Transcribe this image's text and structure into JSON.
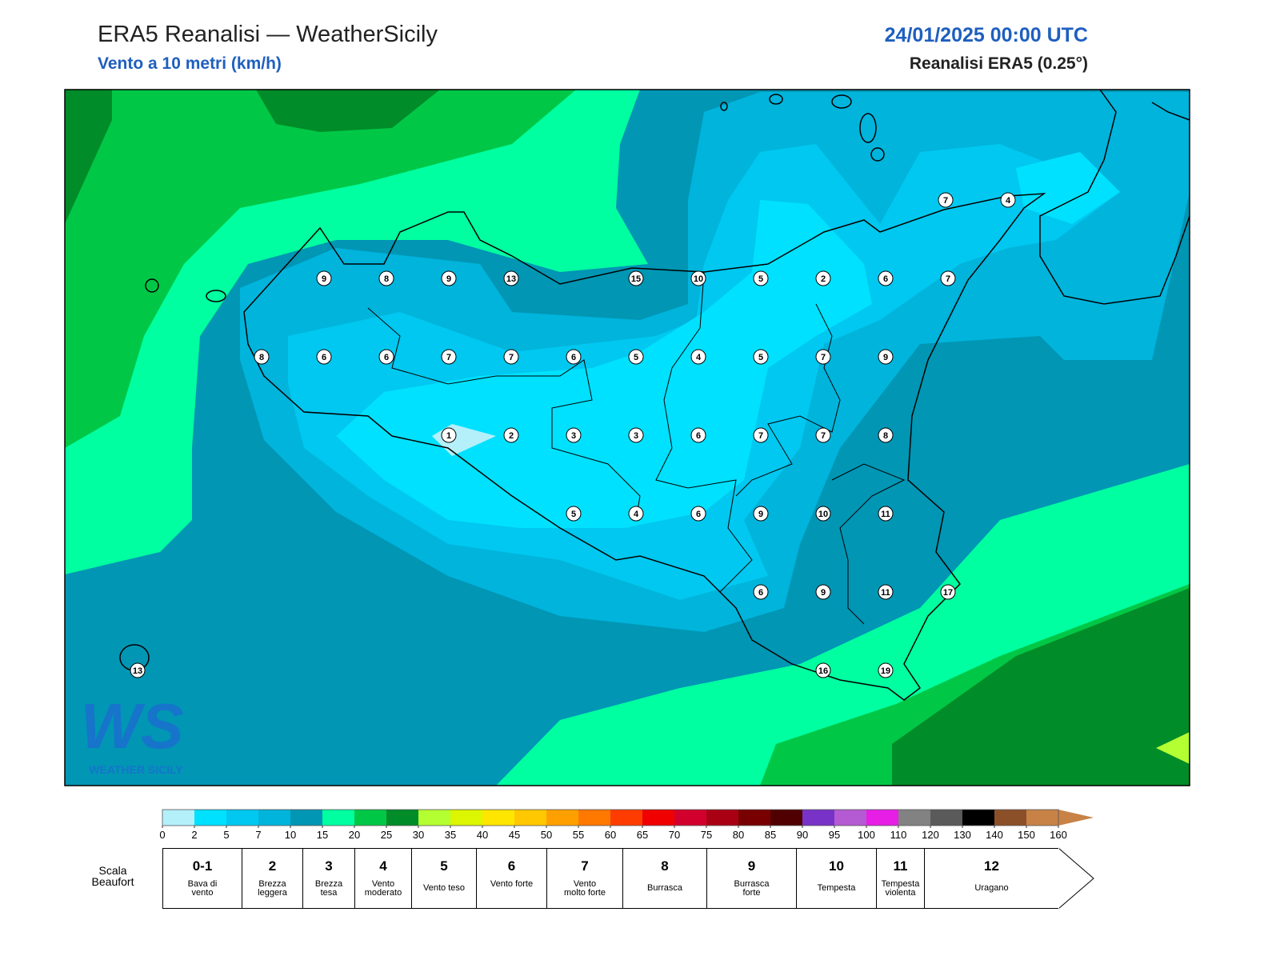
{
  "header": {
    "title": "ERA5 Reanalisi — WeatherSicily",
    "subtitle": "Vento a 10 metri (km/h)",
    "date": "24/01/2025 00:00 UTC",
    "source": "Reanalisi ERA5 (0.25°)"
  },
  "map": {
    "stations": [
      7,
      4,
      9,
      8,
      9,
      13,
      15,
      10,
      5,
      2,
      6,
      7,
      8,
      6,
      6,
      7,
      7,
      6,
      5,
      4,
      5,
      7,
      9,
      1,
      2,
      3,
      3,
      6,
      7,
      7,
      8,
      5,
      4,
      6,
      9,
      10,
      11,
      6,
      9,
      11,
      17,
      16,
      19,
      13
    ]
  },
  "logo": {
    "mark": "WS",
    "text": "WEATHER SICILY"
  },
  "colorbar": {
    "ticks": [
      0,
      2,
      5,
      7,
      10,
      15,
      20,
      25,
      30,
      35,
      40,
      45,
      50,
      55,
      60,
      65,
      70,
      75,
      80,
      85,
      90,
      95,
      100,
      110,
      120,
      130,
      140,
      150,
      160
    ],
    "colors": [
      "#b4f0fa",
      "#00e1ff",
      "#00c8f0",
      "#00b4dc",
      "#0096b4",
      "#00ffa0",
      "#00c846",
      "#008c28",
      "#b4ff32",
      "#dcf500",
      "#ffe600",
      "#ffc800",
      "#ffa000",
      "#ff7800",
      "#ff3c00",
      "#f00000",
      "#d2002d",
      "#aa0014",
      "#780000",
      "#500000",
      "#7832c8",
      "#b45ad2",
      "#e61ee6",
      "#828282",
      "#5a5a5a",
      "#000000",
      "#8c5028",
      "#c88246"
    ]
  },
  "beaufort": {
    "label": "Scala Beaufort",
    "levels": [
      {
        "force": "0-1",
        "name": "Bava di vento"
      },
      {
        "force": "2",
        "name": "Brezza leggera"
      },
      {
        "force": "3",
        "name": "Brezza tesa"
      },
      {
        "force": "4",
        "name": "Vento moderato"
      },
      {
        "force": "5",
        "name": "Vento teso"
      },
      {
        "force": "6",
        "name": "Vento forte"
      },
      {
        "force": "7",
        "name": "Vento molto forte"
      },
      {
        "force": "8",
        "name": "Burrasca"
      },
      {
        "force": "9",
        "name": "Burrasca forte"
      },
      {
        "force": "10",
        "name": "Tempesta"
      },
      {
        "force": "11",
        "name": "Tempesta violenta"
      },
      {
        "force": "12",
        "name": "Uragano"
      }
    ]
  }
}
